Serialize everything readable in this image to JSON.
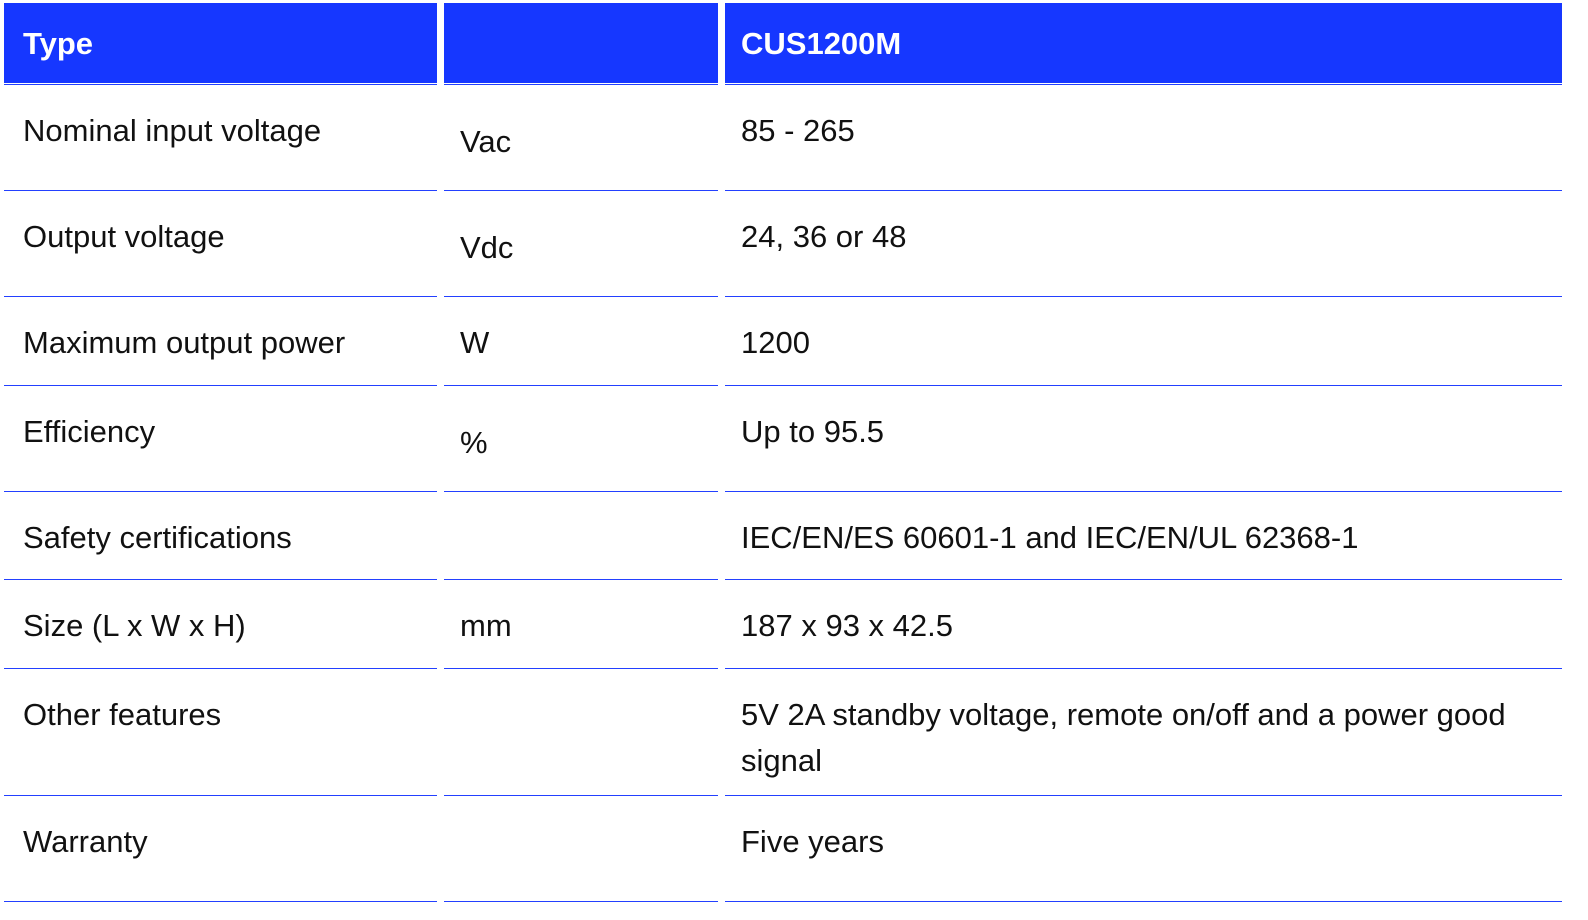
{
  "table": {
    "header": {
      "type": "Type",
      "unit": "",
      "model": "CUS1200M"
    },
    "rows": [
      {
        "label": "Nominal input voltage",
        "unit": "Vac",
        "value": "85 - 265"
      },
      {
        "label": "Output voltage",
        "unit": "Vdc",
        "value": "24, 36 or 48"
      },
      {
        "label": "Maximum output power",
        "unit": "W",
        "value": "1200"
      },
      {
        "label": "Efficiency",
        "unit": "%",
        "value": "Up to 95.5"
      },
      {
        "label": "Safety certifications",
        "unit": "",
        "value": "IEC/EN/ES 60601-1 and IEC/EN/UL 62368-1"
      },
      {
        "label": "Size (L x W x H)",
        "unit": "mm",
        "value": "187 x 93 x 42.5"
      },
      {
        "label": "Other features",
        "unit": "",
        "value": "5V 2A standby voltage, remote on/off and a power good signal"
      },
      {
        "label": "Warranty",
        "unit": "",
        "value": "Five years"
      }
    ],
    "colors": {
      "header_bg": "#1637ff",
      "border": "#2340ff"
    }
  }
}
